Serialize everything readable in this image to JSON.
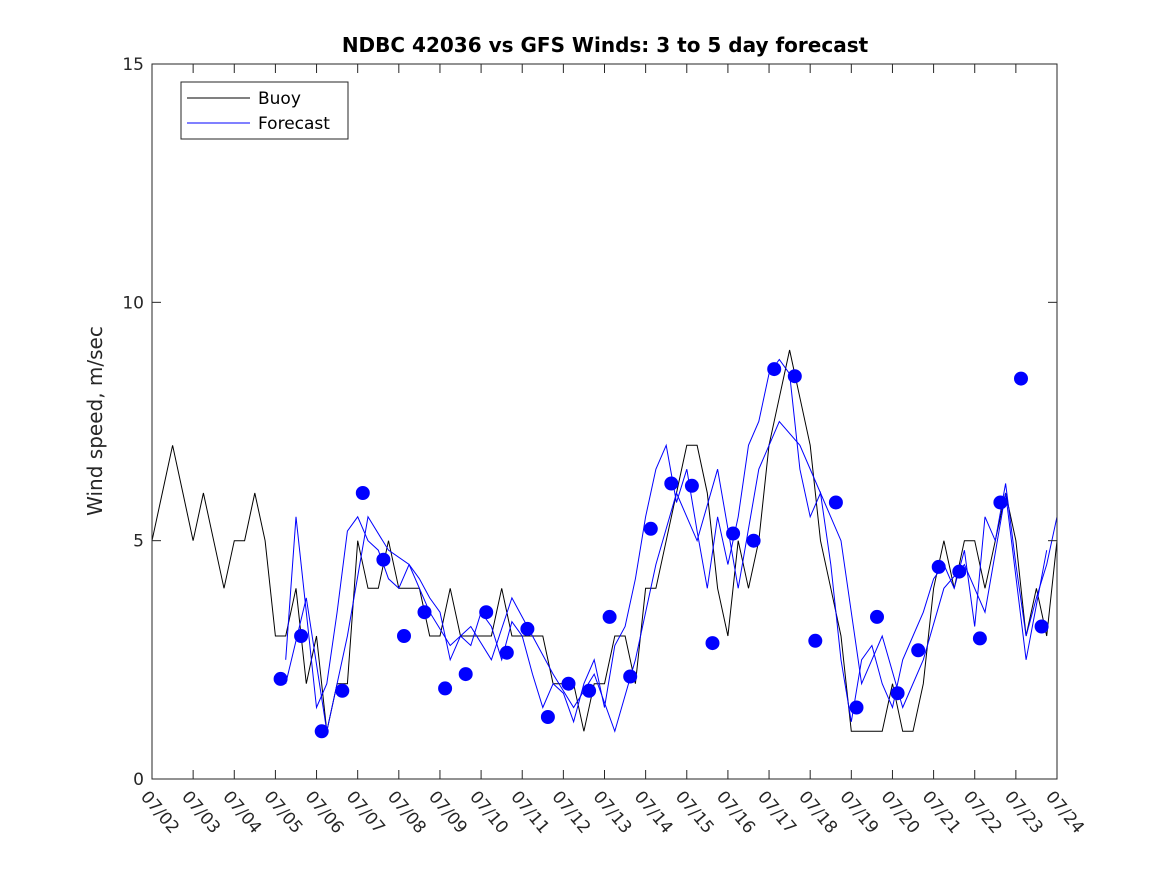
{
  "chart_data": {
    "type": "line",
    "title": "NDBC 42036 vs GFS Winds: 3 to 5 day forecast",
    "xlabel": "",
    "ylabel": "Wind speed, m/sec",
    "ylim": [
      0,
      15
    ],
    "yticks": [
      0,
      5,
      10,
      15
    ],
    "xlim": [
      "07/02",
      "07/24"
    ],
    "xticks": [
      "07/02",
      "07/03",
      "07/04",
      "07/05",
      "07/06",
      "07/07",
      "07/08",
      "07/09",
      "07/10",
      "07/11",
      "07/12",
      "07/13",
      "07/14",
      "07/15",
      "07/16",
      "07/17",
      "07/18",
      "07/19",
      "07/20",
      "07/21",
      "07/22",
      "07/23",
      "07/24"
    ],
    "grid": false,
    "legend": {
      "position": "top-left",
      "entries": [
        "Buoy",
        "Forecast"
      ]
    },
    "colors": {
      "buoy": "#000000",
      "forecast": "#0000ff",
      "markers": "#0000ff"
    },
    "series": [
      {
        "name": "Buoy",
        "x": [
          "07/02 00:00",
          "07/02 06:00",
          "07/02 12:00",
          "07/02 18:00",
          "07/03 00:00",
          "07/03 06:00",
          "07/03 12:00",
          "07/03 18:00",
          "07/04 00:00",
          "07/04 06:00",
          "07/04 12:00",
          "07/04 18:00",
          "07/05 00:00",
          "07/05 06:00",
          "07/05 12:00",
          "07/05 18:00",
          "07/06 00:00",
          "07/06 06:00",
          "07/06 12:00",
          "07/06 18:00",
          "07/07 00:00",
          "07/07 06:00",
          "07/07 12:00",
          "07/07 18:00",
          "07/08 00:00",
          "07/08 06:00",
          "07/08 12:00",
          "07/08 18:00",
          "07/09 00:00",
          "07/09 06:00",
          "07/09 12:00",
          "07/09 18:00",
          "07/10 00:00",
          "07/10 06:00",
          "07/10 12:00",
          "07/10 18:00",
          "07/11 00:00",
          "07/11 06:00",
          "07/11 12:00",
          "07/11 18:00",
          "07/12 00:00",
          "07/12 06:00",
          "07/12 12:00",
          "07/12 18:00",
          "07/13 00:00",
          "07/13 06:00",
          "07/13 12:00",
          "07/13 18:00",
          "07/14 00:00",
          "07/14 06:00",
          "07/14 12:00",
          "07/14 18:00",
          "07/15 00:00",
          "07/15 06:00",
          "07/15 12:00",
          "07/15 18:00",
          "07/16 00:00",
          "07/16 06:00",
          "07/16 12:00",
          "07/16 18:00",
          "07/17 00:00",
          "07/17 06:00",
          "07/17 12:00",
          "07/17 18:00",
          "07/18 00:00",
          "07/18 06:00",
          "07/18 12:00",
          "07/18 18:00",
          "07/19 00:00",
          "07/19 06:00",
          "07/19 12:00",
          "07/19 18:00",
          "07/20 00:00",
          "07/20 06:00",
          "07/20 12:00",
          "07/20 18:00",
          "07/21 00:00",
          "07/21 06:00",
          "07/21 12:00",
          "07/21 18:00",
          "07/22 00:00",
          "07/22 06:00",
          "07/22 12:00",
          "07/22 18:00",
          "07/23 00:00",
          "07/23 06:00",
          "07/23 12:00",
          "07/23 18:00",
          "07/24 00:00"
        ],
        "y": [
          5,
          6,
          7,
          6,
          5,
          6,
          5,
          4,
          5,
          5,
          6,
          5,
          3,
          3,
          4,
          2,
          3,
          1,
          2,
          2,
          5,
          4,
          4,
          5,
          4,
          4,
          4,
          3,
          3,
          4,
          3,
          3,
          3,
          3,
          4,
          3,
          3,
          3,
          3,
          2,
          2,
          2,
          1,
          2,
          2,
          3,
          3,
          2,
          4,
          4,
          5,
          6,
          7,
          7,
          6,
          4,
          3,
          5,
          4,
          5,
          7,
          8,
          9,
          8,
          7,
          5,
          4,
          3,
          1,
          1,
          1,
          1,
          2,
          1,
          1,
          2,
          4,
          5,
          4,
          5,
          5,
          4,
          5,
          6,
          5,
          3,
          4,
          3,
          5
        ]
      },
      {
        "name": "Forecast",
        "x": [
          "07/05 06:00",
          "07/05 12:00",
          "07/05 18:00",
          "07/06 00:00",
          "07/06 06:00",
          "07/06 12:00",
          "07/06 18:00",
          "07/07 00:00",
          "07/07 06:00",
          "07/07 12:00",
          "07/07 18:00",
          "07/08 00:00",
          "07/08 06:00",
          "07/08 12:00",
          "07/08 18:00",
          "07/09 00:00",
          "07/09 06:00",
          "07/09 12:00",
          "07/09 18:00",
          "07/10 00:00",
          "07/10 06:00",
          "07/10 12:00",
          "07/10 18:00",
          "07/11 00:00",
          "07/11 06:00",
          "07/11 12:00",
          "07/11 18:00",
          "07/12 00:00",
          "07/12 06:00",
          "07/12 12:00",
          "07/12 18:00",
          "07/13 00:00",
          "07/13 06:00",
          "07/13 12:00",
          "07/13 18:00",
          "07/14 00:00",
          "07/14 06:00",
          "07/14 12:00",
          "07/14 18:00",
          "07/15 00:00",
          "07/15 06:00",
          "07/15 12:00",
          "07/15 18:00",
          "07/16 00:00",
          "07/16 06:00",
          "07/16 12:00",
          "07/16 18:00",
          "07/17 00:00",
          "07/17 06:00",
          "07/17 12:00",
          "07/17 18:00",
          "07/18 00:00",
          "07/18 06:00",
          "07/18 12:00",
          "07/18 18:00",
          "07/19 00:00",
          "07/19 06:00",
          "07/19 12:00",
          "07/19 18:00",
          "07/20 00:00",
          "07/20 06:00",
          "07/20 12:00",
          "07/20 18:00",
          "07/21 00:00",
          "07/21 06:00",
          "07/21 12:00",
          "07/21 18:00",
          "07/22 00:00",
          "07/22 06:00",
          "07/22 12:00",
          "07/22 18:00",
          "07/23 00:00",
          "07/23 06:00",
          "07/23 12:00",
          "07/23 18:00",
          "07/24 00:00"
        ],
        "y": [
          2.5,
          5.5,
          3.5,
          1.5,
          2.0,
          3.5,
          5.2,
          5.5,
          5.0,
          4.8,
          4.2,
          4.0,
          4.5,
          4.2,
          3.8,
          3.5,
          2.5,
          3.0,
          2.8,
          3.5,
          3.2,
          2.5,
          3.3,
          3.0,
          2.2,
          1.5,
          2.0,
          1.8,
          1.2,
          2.0,
          2.5,
          1.5,
          2.8,
          3.2,
          4.2,
          5.5,
          6.5,
          7.0,
          5.8,
          6.5,
          5.2,
          4.0,
          5.5,
          4.5,
          5.5,
          7.0,
          7.5,
          8.5,
          8.8,
          8.5,
          6.5,
          5.5,
          6.0,
          4.5,
          2.5,
          1.2,
          2.5,
          2.8,
          2.0,
          1.5,
          2.5,
          3.0,
          3.5,
          4.2,
          4.5,
          4.0,
          4.8,
          3.2,
          5.5,
          5.0,
          6.2,
          4.5,
          3.0,
          3.8,
          4.5,
          5.5
        ]
      },
      {
        "name": "Forecast",
        "x": [
          "07/05 06:00",
          "07/05 18:00",
          "07/06 06:00",
          "07/06 18:00",
          "07/07 06:00",
          "07/07 18:00",
          "07/08 06:00",
          "07/08 18:00",
          "07/09 06:00",
          "07/09 18:00",
          "07/10 06:00",
          "07/10 18:00",
          "07/11 06:00",
          "07/11 18:00",
          "07/12 06:00",
          "07/12 18:00",
          "07/13 06:00",
          "07/13 18:00",
          "07/14 06:00",
          "07/14 18:00",
          "07/15 06:00",
          "07/15 18:00",
          "07/16 06:00",
          "07/16 18:00",
          "07/17 06:00",
          "07/17 18:00",
          "07/18 06:00",
          "07/18 18:00",
          "07/19 06:00",
          "07/19 18:00",
          "07/20 06:00",
          "07/20 18:00",
          "07/21 06:00",
          "07/21 18:00",
          "07/22 06:00",
          "07/22 18:00",
          "07/23 06:00",
          "07/23 18:00"
        ],
        "y": [
          2.0,
          3.8,
          1.0,
          3.0,
          5.5,
          4.8,
          4.5,
          3.5,
          2.8,
          3.2,
          2.5,
          3.8,
          3.0,
          2.2,
          1.5,
          2.2,
          1.0,
          2.5,
          4.5,
          6.0,
          5.0,
          6.5,
          4.0,
          6.5,
          7.5,
          7.0,
          6.0,
          5.0,
          2.0,
          3.0,
          1.5,
          2.5,
          4.0,
          4.5,
          3.5,
          6.0,
          2.5,
          4.8
        ]
      }
    ],
    "markers": {
      "name": "Forecast",
      "x": [
        "07/05 03:00",
        "07/05 15:00",
        "07/06 03:00",
        "07/06 15:00",
        "07/07 03:00",
        "07/07 15:00",
        "07/08 03:00",
        "07/08 15:00",
        "07/09 03:00",
        "07/09 15:00",
        "07/10 03:00",
        "07/10 15:00",
        "07/11 03:00",
        "07/11 15:00",
        "07/12 03:00",
        "07/12 15:00",
        "07/13 03:00",
        "07/13 15:00",
        "07/14 03:00",
        "07/14 15:00",
        "07/15 03:00",
        "07/15 15:00",
        "07/16 03:00",
        "07/16 15:00",
        "07/17 03:00",
        "07/17 15:00",
        "07/18 03:00",
        "07/18 15:00",
        "07/19 03:00",
        "07/19 15:00",
        "07/20 03:00",
        "07/20 15:00",
        "07/21 03:00",
        "07/21 15:00",
        "07/22 03:00",
        "07/22 15:00",
        "07/23 03:00",
        "07/23 15:00"
      ],
      "y": [
        2.1,
        3.0,
        1.0,
        1.85,
        6.0,
        4.6,
        3.0,
        3.5,
        1.9,
        2.2,
        3.5,
        2.65,
        3.15,
        1.3,
        2.0,
        1.85,
        3.4,
        2.15,
        5.25,
        6.2,
        6.15,
        2.85,
        5.15,
        5.0,
        8.6,
        8.45,
        2.9,
        5.8,
        1.5,
        3.4,
        1.8,
        2.7,
        4.45,
        4.35,
        2.95,
        5.8,
        8.4,
        3.2
      ]
    }
  }
}
